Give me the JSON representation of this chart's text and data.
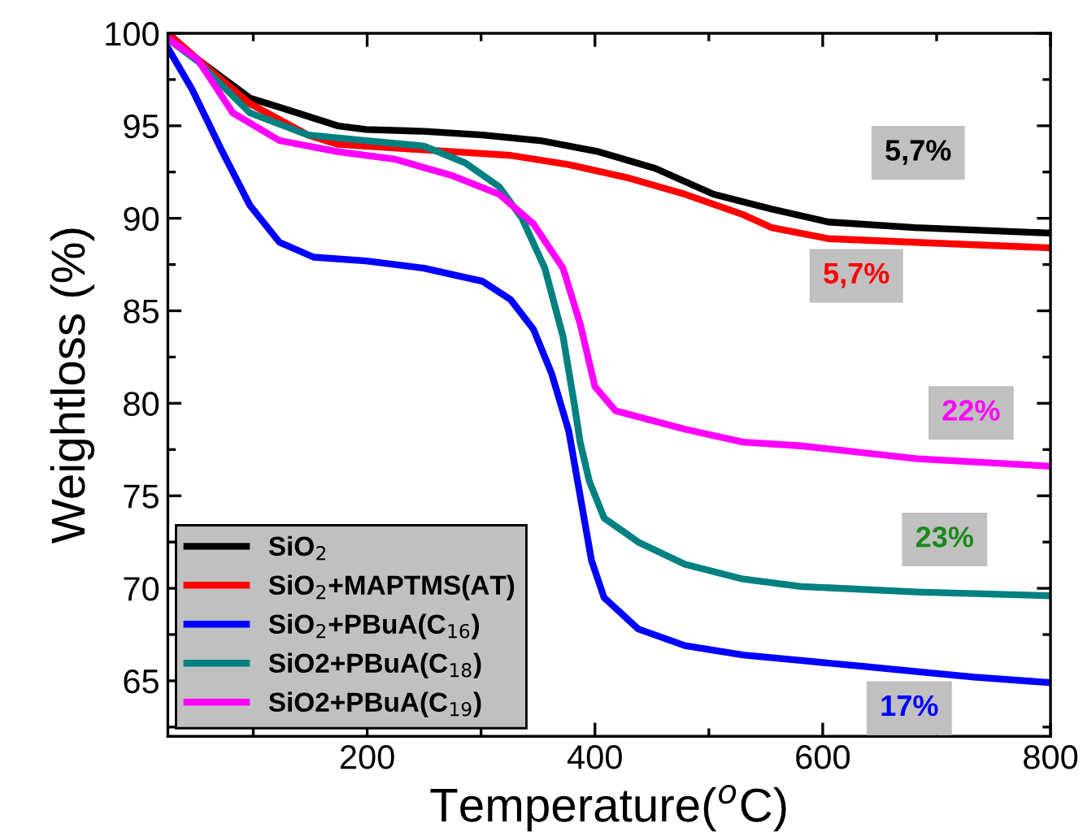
{
  "chart_data": {
    "type": "line",
    "xlabel": "Temperature($^{o}$C)",
    "ylabel": "Weightloss (%)",
    "xlim": [
      25,
      800
    ],
    "ylim": [
      62,
      100
    ],
    "xticks": [
      {
        "value": 100,
        "label": null
      },
      200,
      {
        "value": 300,
        "label": null
      },
      400,
      {
        "value": 500,
        "label": null
      },
      600,
      {
        "value": 700,
        "label": null
      },
      800
    ],
    "yticks": [
      {
        "value": 62.5,
        "label": null
      },
      65,
      {
        "value": 67.5,
        "label": null
      },
      70,
      {
        "value": 72.5,
        "label": null
      },
      75,
      {
        "value": 77.5,
        "label": null
      },
      80,
      {
        "value": 82.5,
        "label": null
      },
      85,
      {
        "value": 87.5,
        "label": null
      },
      90,
      {
        "value": 92.5,
        "label": null
      },
      95,
      {
        "value": 97.5,
        "label": null
      },
      100
    ],
    "grid": false,
    "legend": "bottom left",
    "marker": "none",
    "line_style": "solid",
    "series": [
      {
        "name": "SiO$_{2}$",
        "color": "#000000",
        "x": [
          25,
          51,
          97,
          123,
          174,
          199,
          250,
          301,
          352,
          403,
          453,
          504,
          555,
          605,
          681,
          800
        ],
        "values": [
          100,
          98.6,
          96.5,
          96.0,
          95.0,
          94.8,
          94.7,
          94.5,
          94.2,
          93.6,
          92.7,
          91.3,
          90.5,
          89.8,
          89.5,
          89.2
        ]
      },
      {
        "name": "SiO$_{2}$+MAPTMS(AT)",
        "color": "#ff0000",
        "x": [
          25,
          51,
          97,
          148,
          174,
          224,
          275,
          326,
          377,
          428,
          479,
          530,
          555,
          605,
          681,
          800
        ],
        "values": [
          100,
          98.6,
          96.2,
          94.5,
          94.0,
          93.8,
          93.6,
          93.4,
          92.9,
          92.2,
          91.3,
          90.2,
          89.5,
          88.9,
          88.7,
          88.4
        ]
      },
      {
        "name": "SiO$_{2}$+PBuA(C$_{16}$)",
        "color": "#0000ff",
        "x": [
          25,
          46,
          72,
          97,
          123,
          153,
          199,
          250,
          301,
          326,
          346,
          362,
          377,
          397,
          408,
          438,
          479,
          530,
          581,
          632,
          683,
          733,
          800
        ],
        "values": [
          99.2,
          97.0,
          93.7,
          90.7,
          88.7,
          87.9,
          87.7,
          87.3,
          86.6,
          85.6,
          84.0,
          81.6,
          78.5,
          71.5,
          69.5,
          67.8,
          66.9,
          66.4,
          66.1,
          65.8,
          65.5,
          65.2,
          64.9
        ]
      },
      {
        "name": "SiO2+PBuA(C$_{18}$)",
        "color": "#008080",
        "x": [
          25,
          51,
          97,
          148,
          199,
          250,
          286,
          316,
          336,
          356,
          372,
          382,
          387,
          395,
          408,
          438,
          479,
          530,
          581,
          683,
          800
        ],
        "values": [
          99.7,
          98.5,
          95.7,
          94.5,
          94.2,
          93.9,
          93.0,
          91.7,
          90.0,
          87.3,
          83.6,
          79.9,
          77.9,
          75.8,
          73.8,
          72.5,
          71.3,
          70.5,
          70.1,
          69.8,
          69.6
        ]
      },
      {
        "name": "SiO2+PBuA(C$_{19}$)",
        "color": "#ff00ff",
        "x": [
          25,
          51,
          82,
          123,
          174,
          224,
          275,
          316,
          346,
          372,
          387,
          400,
          418,
          479,
          530,
          581,
          683,
          800
        ],
        "values": [
          99.7,
          98.6,
          95.7,
          94.2,
          93.6,
          93.2,
          92.3,
          91.3,
          89.7,
          87.3,
          84.3,
          80.9,
          79.6,
          78.6,
          77.9,
          77.7,
          77.0,
          76.6
        ]
      }
    ],
    "annotations": [
      "5,7%",
      "5,7%",
      "22%",
      "23%",
      "17%"
    ]
  }
}
